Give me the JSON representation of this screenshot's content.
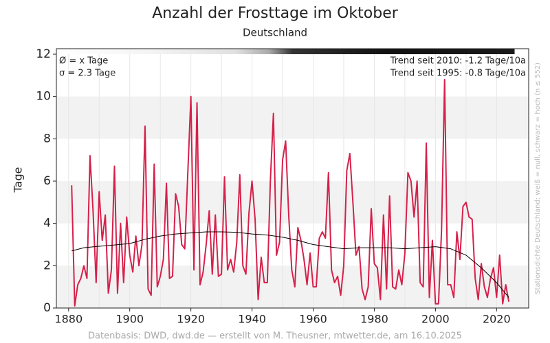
{
  "chart_data": {
    "type": "line",
    "title": "Anzahl der Frosttage im Oktober",
    "subtitle": "Deutschland",
    "ylabel": "Tage",
    "annotations": {
      "mean": "Ø = x Tage",
      "sigma": "σ = 2.3 Tage",
      "trend2010": "Trend seit 2010: -1.2 Tage/10a",
      "trend1995": "Trend seit 1995: -0.8 Tage/10a",
      "density": "Stationsdichte Deutschland: weiß = null, schwarz = hoch (n ≤ 552)"
    },
    "source": "Datenbasis: DWD, dwd.de — erstellt von M. Theusner, mtwetter.de, am 16.10.2025",
    "xlim": [
      1876,
      2030.5
    ],
    "ylim": [
      0,
      12.26
    ],
    "xticks": [
      1880,
      1900,
      1920,
      1940,
      1960,
      1980,
      2000,
      2020
    ],
    "yticks": [
      0,
      2,
      4,
      6,
      8,
      10,
      12
    ],
    "grid": true,
    "series": [
      {
        "color": "#d6204a",
        "x": [
          1881,
          1882,
          1883,
          1884,
          1885,
          1886,
          1887,
          1888,
          1889,
          1890,
          1891,
          1892,
          1893,
          1894,
          1895,
          1896,
          1897,
          1898,
          1899,
          1900,
          1901,
          1902,
          1903,
          1904,
          1905,
          1906,
          1907,
          1908,
          1909,
          1910,
          1911,
          1912,
          1913,
          1914,
          1915,
          1916,
          1917,
          1918,
          1919,
          1920,
          1921,
          1922,
          1923,
          1924,
          1925,
          1926,
          1927,
          1928,
          1929,
          1930,
          1931,
          1932,
          1933,
          1934,
          1935,
          1936,
          1937,
          1938,
          1939,
          1940,
          1941,
          1942,
          1943,
          1944,
          1945,
          1946,
          1947,
          1948,
          1949,
          1950,
          1951,
          1952,
          1953,
          1954,
          1955,
          1956,
          1957,
          1958,
          1959,
          1960,
          1961,
          1962,
          1963,
          1964,
          1965,
          1966,
          1967,
          1968,
          1969,
          1970,
          1971,
          1972,
          1973,
          1974,
          1975,
          1976,
          1977,
          1978,
          1979,
          1980,
          1981,
          1982,
          1983,
          1984,
          1985,
          1986,
          1987,
          1988,
          1989,
          1990,
          1991,
          1992,
          1993,
          1994,
          1995,
          1996,
          1997,
          1998,
          1999,
          2000,
          2001,
          2002,
          2003,
          2004,
          2005,
          2006,
          2007,
          2008,
          2009,
          2010,
          2011,
          2012,
          2013,
          2014,
          2015,
          2016,
          2017,
          2018,
          2019,
          2020,
          2021,
          2022,
          2023,
          2024
        ],
        "values": [
          5.8,
          0.1,
          1.1,
          1.4,
          2.0,
          1.4,
          7.2,
          4.6,
          1.2,
          5.5,
          3.2,
          4.4,
          0.7,
          1.8,
          6.7,
          0.7,
          4.0,
          1.2,
          4.3,
          2.5,
          1.7,
          3.4,
          2.0,
          3.0,
          8.6,
          0.9,
          0.6,
          6.8,
          1.0,
          1.5,
          2.3,
          5.9,
          1.4,
          1.5,
          5.4,
          4.8,
          3.0,
          2.8,
          6.4,
          10.0,
          1.8,
          9.7,
          1.1,
          1.7,
          3.0,
          4.6,
          1.6,
          4.4,
          1.5,
          1.6,
          6.2,
          1.8,
          2.3,
          1.7,
          3.1,
          6.3,
          2.0,
          1.6,
          4.5,
          6.0,
          4.2,
          0.4,
          2.4,
          1.2,
          1.2,
          6.0,
          9.2,
          2.5,
          3.1,
          7.0,
          7.9,
          4.4,
          1.8,
          1.0,
          3.8,
          3.2,
          2.3,
          1.1,
          2.6,
          1.0,
          1.0,
          3.3,
          3.6,
          3.3,
          6.4,
          1.8,
          1.2,
          1.5,
          0.6,
          2.0,
          6.5,
          7.3,
          5.0,
          2.5,
          2.9,
          0.9,
          0.4,
          1.0,
          4.7,
          2.1,
          1.9,
          0.4,
          4.4,
          0.9,
          5.3,
          1.0,
          0.9,
          1.8,
          1.1,
          2.6,
          6.4,
          6.0,
          4.3,
          6.0,
          1.2,
          1.0,
          7.8,
          0.5,
          3.2,
          0.2,
          0.2,
          3.7,
          10.8,
          1.1,
          1.1,
          0.5,
          3.6,
          2.3,
          4.8,
          5.0,
          4.3,
          4.2,
          1.4,
          0.4,
          2.1,
          1.0,
          0.5,
          1.4,
          1.9,
          0.5,
          2.5,
          0.2,
          1.1,
          0.3
        ]
      },
      {
        "color": "#000000",
        "x": [
          1881,
          1885,
          1890,
          1895,
          1900,
          1905,
          1910,
          1915,
          1920,
          1925,
          1930,
          1935,
          1940,
          1945,
          1950,
          1955,
          1960,
          1965,
          1970,
          1975,
          1980,
          1985,
          1990,
          1995,
          2000,
          2005,
          2010,
          2015,
          2020,
          2024
        ],
        "values": [
          2.7,
          2.85,
          2.92,
          2.98,
          3.05,
          3.25,
          3.4,
          3.5,
          3.55,
          3.6,
          3.6,
          3.58,
          3.5,
          3.45,
          3.35,
          3.2,
          3.0,
          2.9,
          2.8,
          2.85,
          2.85,
          2.85,
          2.8,
          2.85,
          2.9,
          2.8,
          2.5,
          1.9,
          1.2,
          0.5
        ]
      }
    ]
  }
}
